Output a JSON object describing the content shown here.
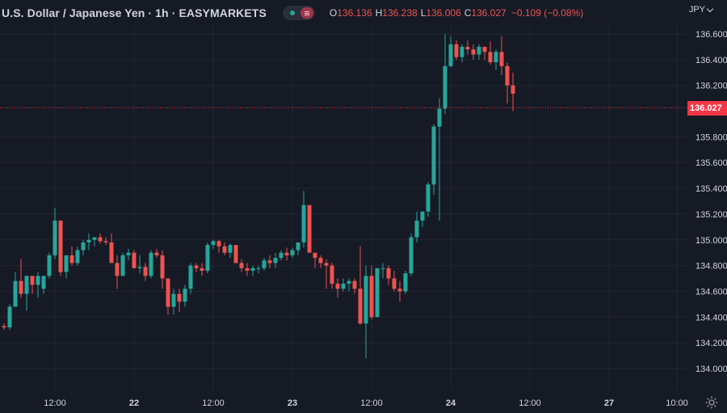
{
  "header": {
    "symbol_title": "U.S. Dollar / Japanese Yen · 1h · EASYMARKETS",
    "ohlc": {
      "o_label": "O",
      "o_value": "136.136",
      "h_label": "H",
      "h_value": "136.238",
      "l_label": "L",
      "l_value": "136.006",
      "c_label": "C",
      "c_value": "136.027",
      "change": "−0.109 (−0.08%)"
    }
  },
  "price_scale": {
    "currency": "JPY",
    "last_price_label": "136.027"
  },
  "colors": {
    "background": "#161a25",
    "up": "#26a69a",
    "down": "#ef5350",
    "last_price": "#f23645",
    "grid": "#232632",
    "text": "#d1d4dc"
  },
  "icons": {
    "settings": "gear-icon",
    "currency_menu": "chevron-down-icon",
    "visibility": "eye-toggle"
  },
  "chart_data": {
    "type": "candlestick",
    "title": "U.S. Dollar / Japanese Yen · 1h · EASYMARKETS",
    "y_ticks": [
      "136.600",
      "136.400",
      "136.200",
      "135.800",
      "135.600",
      "135.400",
      "135.200",
      "135.000",
      "134.800",
      "134.600",
      "134.400",
      "134.200",
      "134.000"
    ],
    "ylim": [
      133.94,
      136.7
    ],
    "x_ticks": [
      {
        "label": "12:00",
        "index": 9
      },
      {
        "label": "22",
        "index": 23
      },
      {
        "label": "12:00",
        "index": 37
      },
      {
        "label": "23",
        "index": 51
      },
      {
        "label": "12:00",
        "index": 65
      },
      {
        "label": "24",
        "index": 79
      },
      {
        "label": "12:00",
        "index": 93
      },
      {
        "label": "27",
        "index": 107
      },
      {
        "label": "10:00",
        "index": 119
      }
    ],
    "last_close": 136.027,
    "candles": [
      [
        134.33,
        134.35,
        134.3,
        134.32
      ],
      [
        134.32,
        134.5,
        134.3,
        134.48
      ],
      [
        134.48,
        134.75,
        134.48,
        134.68
      ],
      [
        134.68,
        134.85,
        134.55,
        134.58
      ],
      [
        134.58,
        134.72,
        134.45,
        134.72
      ],
      [
        134.72,
        134.72,
        134.58,
        134.65
      ],
      [
        134.65,
        134.75,
        134.55,
        134.72
      ],
      [
        134.62,
        134.72,
        134.58,
        134.72
      ],
      [
        134.72,
        134.9,
        134.7,
        134.88
      ],
      [
        134.88,
        135.25,
        134.85,
        135.15
      ],
      [
        135.15,
        135.15,
        134.72,
        134.75
      ],
      [
        134.75,
        134.88,
        134.7,
        134.88
      ],
      [
        134.88,
        134.95,
        134.8,
        134.82
      ],
      [
        134.82,
        134.95,
        134.8,
        134.92
      ],
      [
        134.92,
        135.0,
        134.88,
        134.98
      ],
      [
        134.98,
        135.05,
        134.92,
        135.0
      ],
      [
        135.0,
        135.02,
        134.95,
        135.02
      ],
      [
        135.02,
        135.05,
        134.97,
        134.99
      ],
      [
        134.99,
        135.02,
        134.96,
        134.98
      ],
      [
        134.98,
        135.05,
        134.82,
        134.82
      ],
      [
        134.82,
        134.88,
        134.62,
        134.72
      ],
      [
        134.72,
        134.9,
        134.72,
        134.88
      ],
      [
        134.88,
        134.93,
        134.84,
        134.9
      ],
      [
        134.9,
        134.92,
        134.78,
        134.78
      ],
      [
        134.78,
        134.88,
        134.74,
        134.79
      ],
      [
        134.79,
        134.82,
        134.68,
        134.72
      ],
      [
        134.72,
        134.92,
        134.7,
        134.9
      ],
      [
        134.9,
        134.93,
        134.86,
        134.88
      ],
      [
        134.88,
        134.92,
        134.62,
        134.7
      ],
      [
        134.7,
        134.7,
        134.42,
        134.48
      ],
      [
        134.48,
        134.62,
        134.42,
        134.58
      ],
      [
        134.58,
        134.62,
        134.44,
        134.52
      ],
      [
        134.52,
        134.65,
        134.48,
        134.62
      ],
      [
        134.62,
        134.82,
        134.58,
        134.8
      ],
      [
        134.8,
        134.82,
        134.75,
        134.78
      ],
      [
        134.78,
        134.82,
        134.72,
        134.76
      ],
      [
        134.76,
        134.98,
        134.74,
        134.96
      ],
      [
        134.96,
        135.0,
        134.93,
        134.99
      ],
      [
        134.99,
        135.0,
        134.9,
        134.95
      ],
      [
        134.95,
        134.98,
        134.88,
        134.9
      ],
      [
        134.9,
        134.97,
        134.86,
        134.96
      ],
      [
        134.96,
        134.96,
        134.82,
        134.82
      ],
      [
        134.82,
        134.85,
        134.75,
        134.78
      ],
      [
        134.78,
        134.82,
        134.72,
        134.76
      ],
      [
        134.76,
        134.8,
        134.72,
        134.78
      ],
      [
        134.78,
        134.8,
        134.74,
        134.78
      ],
      [
        134.78,
        134.86,
        134.76,
        134.84
      ],
      [
        134.84,
        134.88,
        134.78,
        134.82
      ],
      [
        134.82,
        134.9,
        134.78,
        134.86
      ],
      [
        134.86,
        134.92,
        134.84,
        134.9
      ],
      [
        134.9,
        134.94,
        134.84,
        134.88
      ],
      [
        134.88,
        134.94,
        134.86,
        134.92
      ],
      [
        134.92,
        134.98,
        134.88,
        134.98
      ],
      [
        134.98,
        135.38,
        134.94,
        135.27
      ],
      [
        135.27,
        135.27,
        134.9,
        134.9
      ],
      [
        134.9,
        134.9,
        134.78,
        134.86
      ],
      [
        134.86,
        134.88,
        134.78,
        134.82
      ],
      [
        134.82,
        134.85,
        134.62,
        134.8
      ],
      [
        134.8,
        134.82,
        134.62,
        134.66
      ],
      [
        134.66,
        134.7,
        134.55,
        134.62
      ],
      [
        134.62,
        134.7,
        134.6,
        134.66
      ],
      [
        134.66,
        134.7,
        134.6,
        134.68
      ],
      [
        134.68,
        134.7,
        134.58,
        134.62
      ],
      [
        134.62,
        134.95,
        134.34,
        134.35
      ],
      [
        134.35,
        134.8,
        134.08,
        134.72
      ],
      [
        134.72,
        134.8,
        134.38,
        134.4
      ],
      [
        134.4,
        134.78,
        134.4,
        134.78
      ],
      [
        134.78,
        134.82,
        134.7,
        134.78
      ],
      [
        134.78,
        134.8,
        134.65,
        134.7
      ],
      [
        134.7,
        134.76,
        134.6,
        134.62
      ],
      [
        134.62,
        134.68,
        134.52,
        134.6
      ],
      [
        134.6,
        134.76,
        134.58,
        134.74
      ],
      [
        134.74,
        135.05,
        134.72,
        135.02
      ],
      [
        135.02,
        135.22,
        134.98,
        135.15
      ],
      [
        135.15,
        135.22,
        135.1,
        135.22
      ],
      [
        135.22,
        135.45,
        135.18,
        135.43
      ],
      [
        135.43,
        135.9,
        135.35,
        135.88
      ],
      [
        135.88,
        136.1,
        135.15,
        136.02
      ],
      [
        136.02,
        136.6,
        135.98,
        136.35
      ],
      [
        136.35,
        136.58,
        136.34,
        136.52
      ],
      [
        136.52,
        136.55,
        136.4,
        136.42
      ],
      [
        136.42,
        136.52,
        136.38,
        136.5
      ],
      [
        136.5,
        136.55,
        136.44,
        136.48
      ],
      [
        136.48,
        136.52,
        136.4,
        136.44
      ],
      [
        136.44,
        136.52,
        136.4,
        136.5
      ],
      [
        136.5,
        136.5,
        136.4,
        136.46
      ],
      [
        136.46,
        136.54,
        136.36,
        136.38
      ],
      [
        136.38,
        136.48,
        136.32,
        136.46
      ],
      [
        136.46,
        136.58,
        136.28,
        136.35
      ],
      [
        136.35,
        136.38,
        136.06,
        136.2
      ],
      [
        136.2,
        136.3,
        136.0,
        136.136
      ]
    ]
  }
}
